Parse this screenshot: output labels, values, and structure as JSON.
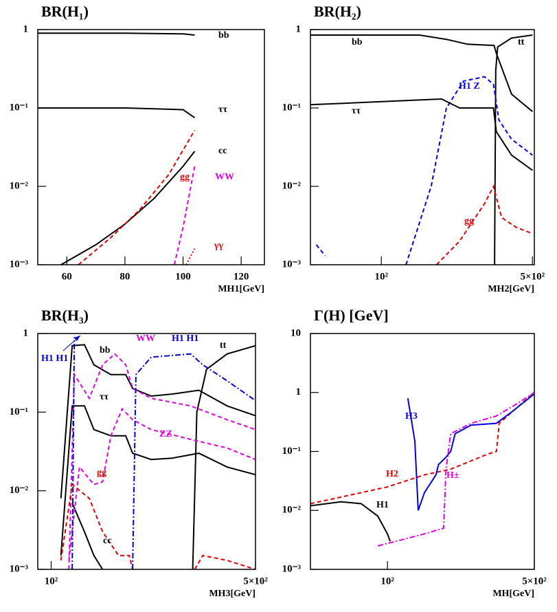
{
  "chart_data": [
    {
      "type": "line",
      "title": "BR(H₁)",
      "x_label": "MH1[GeV]",
      "xscale": "linear",
      "yscale": "log",
      "xlim": [
        50,
        128
      ],
      "ylim": [
        0.001,
        1
      ],
      "xticks": [
        60,
        80,
        100,
        120
      ],
      "yticks": [
        {
          "value": 0.001,
          "label": "10⁻³"
        },
        {
          "value": 0.01,
          "label": "10⁻²"
        },
        {
          "value": 0.1,
          "label": "10⁻¹"
        },
        1
      ],
      "series": [
        {
          "name": "bb",
          "color": "#000000",
          "dash": "solid",
          "x": [
            50,
            80,
            100,
            104
          ],
          "values": [
            0.9,
            0.9,
            0.88,
            0.85
          ]
        },
        {
          "name": "ττ",
          "color": "#000000",
          "dash": "solid",
          "x": [
            50,
            80,
            100,
            104
          ],
          "values": [
            0.1,
            0.1,
            0.095,
            0.075
          ]
        },
        {
          "name": "cc",
          "color": "#000000",
          "dash": "solid",
          "x": [
            58,
            70,
            80,
            90,
            100,
            104
          ],
          "values": [
            0.001,
            0.0018,
            0.0033,
            0.007,
            0.018,
            0.028
          ]
        },
        {
          "name": "gg",
          "color": "#e00000",
          "dash": "dashed",
          "x": [
            64,
            75,
            85,
            95,
            104
          ],
          "values": [
            0.001,
            0.0022,
            0.005,
            0.014,
            0.052
          ]
        },
        {
          "name": "WW",
          "color": "#e000e0",
          "dash": "dashed",
          "x": [
            97,
            100,
            104
          ],
          "values": [
            0.001,
            0.003,
            0.018
          ]
        },
        {
          "name": "γγ",
          "color": "#e00000",
          "dash": "dotted",
          "x": [
            101,
            104
          ],
          "values": [
            0.001,
            0.0016
          ]
        }
      ]
    },
    {
      "type": "line",
      "title": "BR(H₂)",
      "x_label": "MH2[GeV]",
      "xscale": "log",
      "yscale": "log",
      "xlim": [
        47,
        510
      ],
      "ylim": [
        0.001,
        1
      ],
      "xticks": [
        {
          "value": 100,
          "label": "10²"
        },
        {
          "value": 500,
          "label": "5×10²"
        }
      ],
      "yticks": [
        {
          "value": 0.001,
          "label": "10⁻³"
        },
        {
          "value": 0.01,
          "label": "10⁻²"
        },
        {
          "value": 0.1,
          "label": "10⁻¹"
        },
        1
      ],
      "series": [
        {
          "name": "bb",
          "color": "#000000",
          "dash": "solid",
          "x": [
            47,
            150,
            200,
            250,
            320,
            332,
            340,
            400,
            500
          ],
          "values": [
            0.85,
            0.85,
            0.75,
            0.65,
            0.63,
            0.63,
            0.5,
            0.15,
            0.09
          ]
        },
        {
          "name": "tt",
          "color": "#000000",
          "dash": "solid",
          "x": [
            334,
            338,
            345,
            400,
            500
          ],
          "values": [
            0.001,
            0.3,
            0.6,
            0.78,
            0.85
          ]
        },
        {
          "name": "H1 Z",
          "color": "#0000dd",
          "dash": "dashed",
          "x": [
            50,
            55,
            60,
            130,
            170,
            200,
            240,
            300,
            330,
            350,
            400,
            500
          ],
          "values": [
            0.0018,
            0.0013,
            null,
            0.001,
            0.01,
            0.1,
            0.22,
            0.25,
            0.2,
            0.07,
            0.04,
            0.025
          ]
        },
        {
          "name": "ττ",
          "color": "#000000",
          "dash": "solid",
          "x": [
            47,
            190,
            230,
            330,
            340,
            400,
            500
          ],
          "values": [
            0.11,
            0.13,
            0.1,
            0.1,
            0.05,
            0.025,
            0.016
          ]
        },
        {
          "name": "gg",
          "color": "#e00000",
          "dash": "dashed",
          "x": [
            180,
            230,
            300,
            330,
            360,
            420,
            500
          ],
          "values": [
            0.001,
            0.002,
            0.006,
            0.01,
            0.004,
            0.003,
            0.0025
          ]
        }
      ]
    },
    {
      "type": "line",
      "title": "BR(H₃)",
      "x_label": "MH3[GeV]",
      "xscale": "log",
      "yscale": "log",
      "xlim": [
        90,
        500
      ],
      "ylim": [
        0.001,
        1
      ],
      "xticks": [
        {
          "value": 100,
          "label": "10²"
        },
        {
          "value": 500,
          "label": "5×10²"
        }
      ],
      "yticks": [
        {
          "value": 0.001,
          "label": "10⁻³"
        },
        {
          "value": 0.01,
          "label": "10⁻²"
        },
        {
          "value": 0.1,
          "label": "10⁻¹"
        },
        1
      ],
      "annotations": [
        {
          "text": "H1 H1"
        }
      ],
      "series": [
        {
          "name": "bb",
          "color": "#000000",
          "dash": "solid",
          "x": [
            108,
            118,
            130,
            140,
            160,
            180,
            190,
            220,
            260,
            320,
            400,
            500
          ],
          "values": [
            0.008,
            0.7,
            0.72,
            0.4,
            0.3,
            0.3,
            0.2,
            0.16,
            0.17,
            0.19,
            0.12,
            0.09
          ]
        },
        {
          "name": "ττ",
          "color": "#000000",
          "dash": "solid",
          "x": [
            108,
            118,
            130,
            140,
            160,
            180,
            190,
            220,
            260,
            320,
            400,
            500
          ],
          "values": [
            0.0015,
            0.12,
            0.12,
            0.06,
            0.05,
            0.05,
            0.03,
            0.025,
            0.026,
            0.03,
            0.02,
            0.016
          ]
        },
        {
          "name": "cc",
          "color": "#000000",
          "dash": "solid",
          "x": [
            118,
            130,
            140,
            150
          ],
          "values": [
            0.007,
            0.003,
            0.0015,
            0.001
          ]
        },
        {
          "name": "tt",
          "color": "#000000",
          "dash": "solid",
          "x": [
            305,
            315,
            340,
            400,
            500
          ],
          "values": [
            0.001,
            0.1,
            0.35,
            0.55,
            0.7
          ]
        },
        {
          "name": "WW",
          "color": "#e000e0",
          "dash": "dashed",
          "x": [
            115,
            120,
            135,
            150,
            165,
            180,
            190,
            220,
            300,
            400,
            500
          ],
          "values": [
            0.001,
            0.3,
            0.15,
            0.4,
            0.55,
            0.4,
            0.2,
            0.15,
            0.12,
            0.08,
            0.06
          ]
        },
        {
          "name": "ZZ",
          "color": "#e000e0",
          "dash": "dashed",
          "x": [
            115,
            125,
            140,
            150,
            160,
            175,
            190,
            220,
            300,
            400,
            500
          ],
          "values": [
            0.0013,
            0.02,
            0.012,
            0.013,
            0.05,
            0.11,
            0.08,
            0.06,
            0.045,
            0.035,
            0.025
          ]
        },
        {
          "name": "gg",
          "color": "#e00000",
          "dash": "dashed",
          "x": [
            108,
            118,
            135,
            150,
            170,
            185,
            190,
            250,
            310,
            330,
            400,
            500
          ],
          "values": [
            0.0013,
            0.012,
            0.008,
            0.003,
            0.0015,
            0.0015,
            0.001,
            null,
            0.001,
            0.0015,
            0.0013,
            0.001
          ]
        },
        {
          "name": "H1 H1",
          "color": "#0000dd",
          "dash": "dashdot",
          "x": [
            118,
            120,
            150,
            190,
            195,
            220,
            300,
            330,
            400,
            500
          ],
          "values": [
            0.001,
            0.9,
            null,
            0.001,
            0.3,
            0.5,
            0.55,
            0.4,
            0.25,
            0.14
          ]
        }
      ]
    },
    {
      "type": "line",
      "title": "Γ(H) [GeV]",
      "x_label": "MH[GeV]",
      "xscale": "log",
      "yscale": "log",
      "xlim": [
        43,
        500
      ],
      "ylim": [
        0.001,
        10
      ],
      "xticks": [
        {
          "value": 100,
          "label": "10²"
        },
        {
          "value": 500,
          "label": "5×10²"
        }
      ],
      "yticks": [
        {
          "value": 0.001,
          "label": "10⁻³"
        },
        {
          "value": 0.01,
          "label": "10⁻²"
        },
        {
          "value": 0.1,
          "label": "10⁻¹"
        },
        1,
        10
      ],
      "series": [
        {
          "name": "H1",
          "color": "#000000",
          "dash": "solid",
          "x": [
            43,
            60,
            75,
            90,
            100,
            103
          ],
          "values": [
            0.012,
            0.014,
            0.013,
            0.008,
            0.004,
            0.003
          ]
        },
        {
          "name": "H2",
          "color": "#e00000",
          "dash": "dashed",
          "x": [
            43,
            100,
            150,
            200,
            300,
            330,
            340,
            400,
            500
          ],
          "values": [
            0.013,
            0.025,
            0.04,
            0.05,
            0.09,
            0.1,
            0.3,
            0.5,
            1.0
          ]
        },
        {
          "name": "H3",
          "color": "#0000dd",
          "dash": "solid",
          "x": [
            125,
            135,
            140,
            150,
            170,
            175,
            190,
            200,
            210,
            250,
            330,
            400,
            500
          ],
          "values": [
            0.8,
            0.15,
            0.01,
            0.02,
            0.04,
            0.06,
            0.08,
            0.1,
            0.2,
            0.28,
            0.3,
            0.5,
            0.95
          ]
        },
        {
          "name": "H±",
          "color": "#e000e0",
          "dash": "dashdot",
          "x": [
            90,
            150,
            185,
            190,
            200,
            250,
            330,
            400,
            500
          ],
          "values": [
            0.0025,
            0.004,
            0.005,
            0.05,
            0.2,
            0.3,
            0.4,
            0.6,
            1.0
          ]
        }
      ]
    }
  ]
}
